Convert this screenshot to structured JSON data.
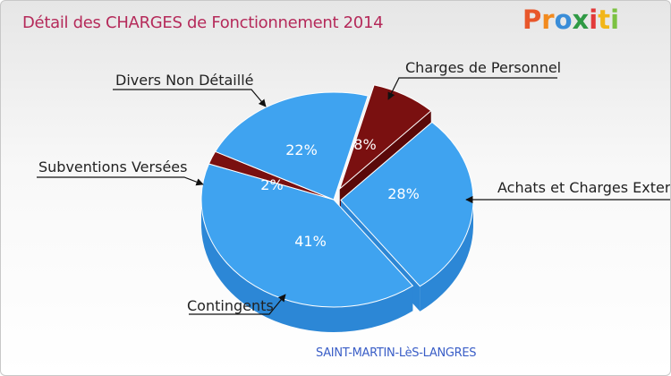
{
  "title": "Détail des CHARGES de Fonctionnement 2014",
  "logo": [
    "P",
    "r",
    "o",
    "x",
    "i",
    "t",
    "i"
  ],
  "city": "SAINT-MARTIN-LèS-LANGRES",
  "colors": {
    "blue": "#3fa3f0",
    "blue_side": "#2c87d6",
    "red": "#7a1010",
    "red_side": "#5a0909",
    "title": "#b52a5a"
  },
  "chart_data": {
    "type": "pie",
    "title": "Détail des CHARGES de Fonctionnement 2014",
    "subtitle": "SAINT-MARTIN-LèS-LANGRES",
    "slices": [
      {
        "label": "Charges de Personnel",
        "value": 8,
        "pct_label": "8%",
        "color": "red"
      },
      {
        "label": "Achats et Charges Externes",
        "value": 28,
        "pct_label": "28%",
        "color": "blue"
      },
      {
        "label": "Contingents",
        "value": 41,
        "pct_label": "41%",
        "color": "blue"
      },
      {
        "label": "Subventions Versées",
        "value": 2,
        "pct_label": "2%",
        "color": "red"
      },
      {
        "label": "Divers Non Détaillé",
        "value": 22,
        "pct_label": "22%",
        "color": "blue"
      }
    ]
  }
}
